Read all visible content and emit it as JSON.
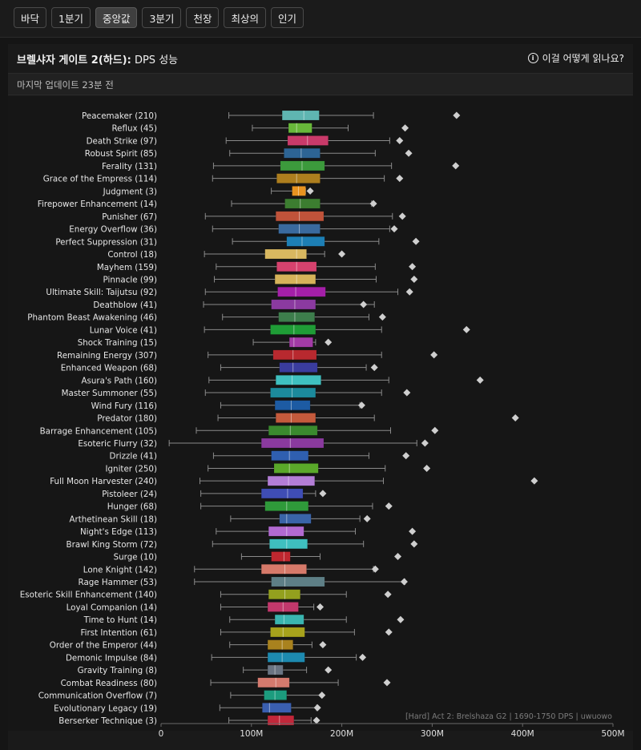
{
  "tabs": [
    {
      "label": "바닥"
    },
    {
      "label": "1분기"
    },
    {
      "label": "중앙값"
    },
    {
      "label": "3분기"
    },
    {
      "label": "천장"
    },
    {
      "label": "최상의"
    },
    {
      "label": "인기"
    }
  ],
  "active_tab": 2,
  "panel": {
    "title_bold": "브렐샤자 게이트 2(하드):",
    "title_rest": " DPS 성능",
    "help_label": "이걸 어떻게 읽나요?",
    "updated": "마지막 업데이트 23분 전"
  },
  "chart_data": {
    "type": "box",
    "watermark": "[Hard] Act 2: Brelshaza G2 | 1690-1750 DPS | uwuowo",
    "x_ticks": [
      "0",
      "100M",
      "200M",
      "300M",
      "400M",
      "500M"
    ],
    "x_tick_values": [
      0,
      100,
      200,
      300,
      400,
      500
    ],
    "xlim": [
      0,
      500
    ],
    "unit": "M",
    "rows": [
      {
        "label": "Peacemaker (210)",
        "color": "#5fb5b1",
        "min": 75,
        "q1": 134,
        "median": 158,
        "q3": 175,
        "max": 235,
        "best": 327
      },
      {
        "label": "Reflux (45)",
        "color": "#68b83a",
        "min": 101,
        "q1": 141,
        "median": 150,
        "q3": 167,
        "max": 207,
        "best": 270
      },
      {
        "label": "Death Strike (97)",
        "color": "#c93a6a",
        "min": 72,
        "q1": 140,
        "median": 162,
        "q3": 185,
        "max": 253,
        "best": 264
      },
      {
        "label": "Robust Spirit (85)",
        "color": "#2d6494",
        "min": 76,
        "q1": 136,
        "median": 155,
        "q3": 176,
        "max": 237,
        "best": 274
      },
      {
        "label": "Ferality (131)",
        "color": "#3c9a3c",
        "min": 58,
        "q1": 132,
        "median": 156,
        "q3": 181,
        "max": 255,
        "best": 326
      },
      {
        "label": "Grace of the Empress (114)",
        "color": "#ad7e1e",
        "min": 57,
        "q1": 128,
        "median": 150,
        "q3": 176,
        "max": 247,
        "best": 264
      },
      {
        "label": "Judgment (3)",
        "color": "#e89320",
        "min": 122,
        "q1": 145,
        "median": 152,
        "q3": 160,
        "max": 160,
        "best": 165
      },
      {
        "label": "Firepower Enhancement (14)",
        "color": "#3c7d30",
        "min": 78,
        "q1": 137,
        "median": 154,
        "q3": 176,
        "max": 233,
        "best": 235
      },
      {
        "label": "Punisher (67)",
        "color": "#c0533a",
        "min": 49,
        "q1": 127,
        "median": 153,
        "q3": 180,
        "max": 256,
        "best": 267
      },
      {
        "label": "Energy Overflow (36)",
        "color": "#3a6a9e",
        "min": 57,
        "q1": 130,
        "median": 153,
        "q3": 176,
        "max": 253,
        "best": 258
      },
      {
        "label": "Perfect Suppression (31)",
        "color": "#1d7fb5",
        "min": 79,
        "q1": 139,
        "median": 156,
        "q3": 181,
        "max": 241,
        "best": 282
      },
      {
        "label": "Control (18)",
        "color": "#d9b860",
        "min": 48,
        "q1": 115,
        "median": 150,
        "q3": 161,
        "max": 181,
        "best": 200
      },
      {
        "label": "Mayhem (159)",
        "color": "#d6426e",
        "min": 61,
        "q1": 128,
        "median": 150,
        "q3": 172,
        "max": 237,
        "best": 278
      },
      {
        "label": "Pinnacle (99)",
        "color": "#d6b35a",
        "min": 59,
        "q1": 126,
        "median": 150,
        "q3": 171,
        "max": 238,
        "best": 280
      },
      {
        "label": "Ultimate Skill: Taijutsu (92)",
        "color": "#a41fa8",
        "min": 49,
        "q1": 129,
        "median": 149,
        "q3": 182,
        "max": 262,
        "best": 275
      },
      {
        "label": "Deathblow (41)",
        "color": "#8b3aa0",
        "min": 47,
        "q1": 122,
        "median": 148,
        "q3": 171,
        "max": 236,
        "best": 224
      },
      {
        "label": "Phantom Beast Awakening (46)",
        "color": "#3d7d4c",
        "min": 68,
        "q1": 130,
        "median": 148,
        "q3": 170,
        "max": 230,
        "best": 245
      },
      {
        "label": "Lunar Voice (41)",
        "color": "#1f9c36",
        "min": 48,
        "q1": 121,
        "median": 147,
        "q3": 171,
        "max": 244,
        "best": 338
      },
      {
        "label": "Shock Training (15)",
        "color": "#a33ba6",
        "min": 102,
        "q1": 142,
        "median": 147,
        "q3": 168,
        "max": 171,
        "best": 185
      },
      {
        "label": "Remaining Energy (307)",
        "color": "#b8292f",
        "min": 52,
        "q1": 124,
        "median": 146,
        "q3": 172,
        "max": 244,
        "best": 302
      },
      {
        "label": "Enhanced Weapon (68)",
        "color": "#3a3c9e",
        "min": 66,
        "q1": 131,
        "median": 146,
        "q3": 173,
        "max": 227,
        "best": 236
      },
      {
        "label": "Asura's Path (160)",
        "color": "#3fc0c0",
        "min": 53,
        "q1": 127,
        "median": 145,
        "q3": 177,
        "max": 252,
        "best": 353
      },
      {
        "label": "Master Summoner (55)",
        "color": "#1c8a9c",
        "min": 49,
        "q1": 121,
        "median": 145,
        "q3": 171,
        "max": 244,
        "best": 272
      },
      {
        "label": "Wind Fury (116)",
        "color": "#1d5ba3",
        "min": 66,
        "q1": 126,
        "median": 144,
        "q3": 165,
        "max": 220,
        "best": 222
      },
      {
        "label": "Predator (180)",
        "color": "#c45a3c",
        "min": 63,
        "q1": 127,
        "median": 144,
        "q3": 171,
        "max": 236,
        "best": 392
      },
      {
        "label": "Barrage Enhancement (105)",
        "color": "#3a8a2e",
        "min": 39,
        "q1": 119,
        "median": 143,
        "q3": 173,
        "max": 254,
        "best": 303
      },
      {
        "label": "Esoteric Flurry (32)",
        "color": "#8a3a9e",
        "min": 9,
        "q1": 111,
        "median": 143,
        "q3": 180,
        "max": 283,
        "best": 292
      },
      {
        "label": "Drizzle (41)",
        "color": "#2f5fb0",
        "min": 58,
        "q1": 122,
        "median": 142,
        "q3": 163,
        "max": 230,
        "best": 271
      },
      {
        "label": "Igniter (250)",
        "color": "#5aa82a",
        "min": 52,
        "q1": 125,
        "median": 142,
        "q3": 174,
        "max": 248,
        "best": 294
      },
      {
        "label": "Full Moon Harvester (240)",
        "color": "#b37ed6",
        "min": 43,
        "q1": 118,
        "median": 141,
        "q3": 170,
        "max": 246,
        "best": 413
      },
      {
        "label": "Pistoleer (24)",
        "color": "#3f4db5",
        "min": 44,
        "q1": 111,
        "median": 140,
        "q3": 157,
        "max": 171,
        "best": 179
      },
      {
        "label": "Hunger (68)",
        "color": "#2f9a3a",
        "min": 44,
        "q1": 115,
        "median": 139,
        "q3": 163,
        "max": 234,
        "best": 252
      },
      {
        "label": "Arthetinean Skill (18)",
        "color": "#3a64a8",
        "min": 77,
        "q1": 131,
        "median": 139,
        "q3": 166,
        "max": 220,
        "best": 228
      },
      {
        "label": "Night's Edge (113)",
        "color": "#b26ad1",
        "min": 61,
        "q1": 119,
        "median": 139,
        "q3": 158,
        "max": 215,
        "best": 278
      },
      {
        "label": "Brawl King Storm (72)",
        "color": "#3fbfbf",
        "min": 57,
        "q1": 120,
        "median": 139,
        "q3": 162,
        "max": 224,
        "best": 280
      },
      {
        "label": "Surge (10)",
        "color": "#c0272f",
        "min": 89,
        "q1": 122,
        "median": 136,
        "q3": 143,
        "max": 176,
        "best": 262
      },
      {
        "label": "Lone Knight (142)",
        "color": "#d67a6a",
        "min": 37,
        "q1": 111,
        "median": 137,
        "q3": 161,
        "max": 235,
        "best": 237
      },
      {
        "label": "Rage Hammer (53)",
        "color": "#5e7f86",
        "min": 37,
        "q1": 122,
        "median": 137,
        "q3": 181,
        "max": 270,
        "best": 269
      },
      {
        "label": "Esoteric Skill Enhancement (140)",
        "color": "#93a01e",
        "min": 66,
        "q1": 119,
        "median": 137,
        "q3": 154,
        "max": 205,
        "best": 251
      },
      {
        "label": "Loyal Companion (14)",
        "color": "#c2386c",
        "min": 66,
        "q1": 118,
        "median": 135,
        "q3": 152,
        "max": 169,
        "best": 176
      },
      {
        "label": "Time to Hunt (14)",
        "color": "#3ab5b0",
        "min": 76,
        "q1": 126,
        "median": 136,
        "q3": 158,
        "max": 205,
        "best": 265
      },
      {
        "label": "First Intention (61)",
        "color": "#a7a21c",
        "min": 66,
        "q1": 121,
        "median": 135,
        "q3": 159,
        "max": 214,
        "best": 252
      },
      {
        "label": "Order of the Emperor (44)",
        "color": "#a9821e",
        "min": 76,
        "q1": 118,
        "median": 134,
        "q3": 146,
        "max": 167,
        "best": 179
      },
      {
        "label": "Demonic Impulse (84)",
        "color": "#1d8ab0",
        "min": 56,
        "q1": 118,
        "median": 134,
        "q3": 159,
        "max": 216,
        "best": 223
      },
      {
        "label": "Gravity Training (8)",
        "color": "#6a7482",
        "min": 91,
        "q1": 118,
        "median": 126,
        "q3": 135,
        "max": 161,
        "best": 185
      },
      {
        "label": "Combat Readiness (80)",
        "color": "#d57a6e",
        "min": 55,
        "q1": 107,
        "median": 127,
        "q3": 142,
        "max": 196,
        "best": 250
      },
      {
        "label": "Communication Overflow (7)",
        "color": "#1c9c7e",
        "min": 77,
        "q1": 114,
        "median": 126,
        "q3": 139,
        "max": 178,
        "best": 178
      },
      {
        "label": "Evolutionary Legacy (19)",
        "color": "#3a5fb0",
        "min": 65,
        "q1": 112,
        "median": 120,
        "q3": 144,
        "max": 172,
        "best": 173
      },
      {
        "label": "Berserker Technique (3)",
        "color": "#c2273a",
        "min": 75,
        "q1": 118,
        "median": 131,
        "q3": 147,
        "max": 166,
        "best": 172
      }
    ]
  }
}
